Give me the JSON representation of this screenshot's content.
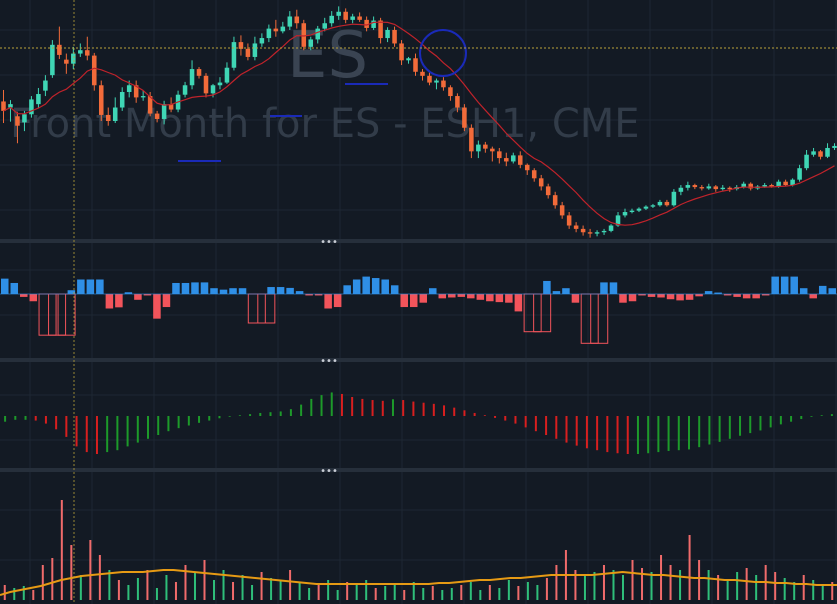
{
  "watermark": {
    "symbol": "ES",
    "description": "Front Month for ES - ESH1, CME"
  },
  "pane_separator_label": "•••",
  "colors": {
    "background": "#131a24",
    "grid": "#1e2733",
    "separator": "#262f3b",
    "up": "#3fd6b5",
    "down": "#f26b3a",
    "ma_line": "#c0232b",
    "crosshair": "#b9a13a",
    "hist_up": "#2f8fe6",
    "hist_down": "#f2545b",
    "osc_up": "#1d9a2a",
    "osc_down": "#d81f1f",
    "vol_up": "#2fbf7a",
    "vol_down": "#f06b6b",
    "vol_ma": "#e69a14",
    "marker": "#1a2ab8"
  },
  "chart_data": [
    {
      "type": "candlestick",
      "pane": "price",
      "symbol": "ES",
      "overlay": "moving-average",
      "candles": [
        [
          0.64,
          0.5,
          0.32,
          0.81
        ],
        [
          0.55,
          0.6,
          0.34,
          0.66
        ],
        [
          0.42,
          0.28,
          0.02,
          0.48
        ],
        [
          0.33,
          0.45,
          0.2,
          0.5
        ],
        [
          0.45,
          0.67,
          0.4,
          0.72
        ],
        [
          0.6,
          0.75,
          0.55,
          0.84
        ],
        [
          0.8,
          0.95,
          0.72,
          1.03
        ],
        [
          1.03,
          1.48,
          0.99,
          1.55
        ],
        [
          1.48,
          1.33,
          1.27,
          1.75
        ],
        [
          1.26,
          1.2,
          1.05,
          1.35
        ],
        [
          1.2,
          1.35,
          1.12,
          1.45
        ],
        [
          1.35,
          1.4,
          1.3,
          1.5
        ],
        [
          1.4,
          1.32,
          1.25,
          1.6
        ],
        [
          1.32,
          0.88,
          0.8,
          1.36
        ],
        [
          0.88,
          0.44,
          0.35,
          0.95
        ],
        [
          0.44,
          0.35,
          0.28,
          0.55
        ],
        [
          0.35,
          0.55,
          0.32,
          0.7
        ],
        [
          0.55,
          0.78,
          0.5,
          0.85
        ],
        [
          0.78,
          0.88,
          0.7,
          0.95
        ],
        [
          0.88,
          0.7,
          0.62,
          0.95
        ],
        [
          0.7,
          0.72,
          0.65,
          0.8
        ],
        [
          0.72,
          0.46,
          0.42,
          0.78
        ],
        [
          0.46,
          0.38,
          0.33,
          0.5
        ],
        [
          0.38,
          0.6,
          0.3,
          0.65
        ],
        [
          0.6,
          0.52,
          0.48,
          0.7
        ],
        [
          0.52,
          0.74,
          0.48,
          0.8
        ],
        [
          0.74,
          0.88,
          0.7,
          0.93
        ],
        [
          0.88,
          1.12,
          0.82,
          1.25
        ],
        [
          1.12,
          1.02,
          0.98,
          1.15
        ],
        [
          1.02,
          0.76,
          0.7,
          1.06
        ],
        [
          0.76,
          0.88,
          0.7,
          0.9
        ],
        [
          0.88,
          0.92,
          0.82,
          1.0
        ],
        [
          0.92,
          1.14,
          0.9,
          1.22
        ],
        [
          1.14,
          1.52,
          1.1,
          1.6
        ],
        [
          1.52,
          1.42,
          1.32,
          1.62
        ],
        [
          1.42,
          1.3,
          1.25,
          1.5
        ],
        [
          1.3,
          1.5,
          1.25,
          1.6
        ],
        [
          1.5,
          1.58,
          1.45,
          1.65
        ],
        [
          1.58,
          1.72,
          1.52,
          1.78
        ],
        [
          1.72,
          1.68,
          1.6,
          1.85
        ],
        [
          1.68,
          1.75,
          1.65,
          1.82
        ],
        [
          1.75,
          1.9,
          1.7,
          1.98
        ],
        [
          1.9,
          1.8,
          1.72,
          2.0
        ],
        [
          1.8,
          1.45,
          1.4,
          1.85
        ],
        [
          1.45,
          1.56,
          1.4,
          1.6
        ],
        [
          1.56,
          1.72,
          1.5,
          1.76
        ],
        [
          1.72,
          1.8,
          1.68,
          1.88
        ],
        [
          1.8,
          1.91,
          1.75,
          1.98
        ],
        [
          1.91,
          1.97,
          1.85,
          2.05
        ],
        [
          1.97,
          1.85,
          1.8,
          2.02
        ],
        [
          1.85,
          1.9,
          1.8,
          1.94
        ],
        [
          1.9,
          1.85,
          1.82,
          1.96
        ],
        [
          1.85,
          1.73,
          1.68,
          1.9
        ],
        [
          1.73,
          1.84,
          1.7,
          1.9
        ],
        [
          1.84,
          1.58,
          1.5,
          1.88
        ],
        [
          1.58,
          1.7,
          1.52,
          1.74
        ],
        [
          1.7,
          1.5,
          1.45,
          1.75
        ],
        [
          1.5,
          1.25,
          1.18,
          1.55
        ],
        [
          1.25,
          1.28,
          1.2,
          1.3
        ],
        [
          1.28,
          1.08,
          1.02,
          1.35
        ],
        [
          1.08,
          1.02,
          0.95,
          1.12
        ],
        [
          1.02,
          0.92,
          0.88,
          1.1
        ],
        [
          0.92,
          0.95,
          0.82,
          0.98
        ],
        [
          0.95,
          0.85,
          0.8,
          1.0
        ],
        [
          0.85,
          0.72,
          0.65,
          0.88
        ],
        [
          0.72,
          0.55,
          0.48,
          0.76
        ],
        [
          0.55,
          0.25,
          0.2,
          0.6
        ],
        [
          0.25,
          -0.1,
          -0.2,
          0.3
        ],
        [
          -0.1,
          0.0,
          -0.2,
          0.06
        ],
        [
          0.0,
          -0.06,
          -0.12,
          0.04
        ],
        [
          -0.06,
          -0.1,
          -0.25,
          -0.03
        ],
        [
          -0.1,
          -0.2,
          -0.28,
          -0.05
        ],
        [
          -0.2,
          -0.25,
          -0.32,
          -0.12
        ],
        [
          -0.25,
          -0.16,
          -0.28,
          -0.12
        ],
        [
          -0.16,
          -0.3,
          -0.35,
          -0.1
        ],
        [
          -0.3,
          -0.38,
          -0.45,
          -0.28
        ],
        [
          -0.38,
          -0.5,
          -0.55,
          -0.35
        ],
        [
          -0.5,
          -0.62,
          -0.68,
          -0.45
        ],
        [
          -0.62,
          -0.75,
          -0.8,
          -0.58
        ],
        [
          -0.75,
          -0.9,
          -0.95,
          -0.7
        ],
        [
          -0.9,
          -1.05,
          -1.1,
          -0.85
        ],
        [
          -1.05,
          -1.2,
          -1.25,
          -1.0
        ],
        [
          -1.2,
          -1.25,
          -1.3,
          -1.15
        ],
        [
          -1.25,
          -1.3,
          -1.35,
          -1.2
        ],
        [
          -1.3,
          -1.32,
          -1.38,
          -1.25
        ],
        [
          -1.32,
          -1.3,
          -1.36,
          -1.27
        ],
        [
          -1.3,
          -1.28,
          -1.34,
          -1.25
        ],
        [
          -1.28,
          -1.2,
          -1.3,
          -1.18
        ],
        [
          -1.2,
          -1.05,
          -1.22,
          -1.0
        ],
        [
          -1.05,
          -1.0,
          -1.08,
          -0.95
        ],
        [
          -1.0,
          -0.98,
          -1.02,
          -0.95
        ],
        [
          -0.98,
          -0.95,
          -1.0,
          -0.93
        ],
        [
          -0.95,
          -0.92,
          -0.97,
          -0.9
        ],
        [
          -0.92,
          -0.9,
          -0.94,
          -0.88
        ],
        [
          -0.9,
          -0.85,
          -0.92,
          -0.82
        ],
        [
          -0.85,
          -0.9,
          -0.92,
          -0.82
        ],
        [
          -0.9,
          -0.7,
          -0.92,
          -0.66
        ],
        [
          -0.7,
          -0.64,
          -0.75,
          -0.6
        ],
        [
          -0.64,
          -0.6,
          -0.68,
          -0.55
        ],
        [
          -0.6,
          -0.63,
          -0.66,
          -0.58
        ],
        [
          -0.63,
          -0.65,
          -0.68,
          -0.6
        ],
        [
          -0.65,
          -0.62,
          -0.67,
          -0.58
        ],
        [
          -0.62,
          -0.66,
          -0.7,
          -0.6
        ],
        [
          -0.66,
          -0.64,
          -0.68,
          -0.6
        ],
        [
          -0.64,
          -0.66,
          -0.7,
          -0.62
        ],
        [
          -0.66,
          -0.63,
          -0.68,
          -0.6
        ],
        [
          -0.63,
          -0.58,
          -0.65,
          -0.55
        ],
        [
          -0.58,
          -0.65,
          -0.68,
          -0.56
        ],
        [
          -0.65,
          -0.62,
          -0.67,
          -0.6
        ],
        [
          -0.62,
          -0.6,
          -0.64,
          -0.57
        ],
        [
          -0.6,
          -0.62,
          -0.64,
          -0.58
        ],
        [
          -0.62,
          -0.55,
          -0.64,
          -0.52
        ],
        [
          -0.55,
          -0.6,
          -0.62,
          -0.52
        ],
        [
          -0.6,
          -0.52,
          -0.62,
          -0.5
        ],
        [
          -0.52,
          -0.35,
          -0.55,
          -0.3
        ],
        [
          -0.35,
          -0.15,
          -0.38,
          -0.08
        ],
        [
          -0.15,
          -0.1,
          -0.18,
          -0.05
        ],
        [
          -0.1,
          -0.18,
          -0.22,
          -0.08
        ],
        [
          -0.18,
          -0.05,
          -0.2,
          0.02
        ],
        [
          -0.05,
          -0.02,
          -0.08,
          0.02
        ]
      ]
    },
    {
      "type": "bar",
      "pane": "histogram",
      "values": [
        0.53,
        0.38,
        -0.1,
        -0.25,
        -1.42,
        -1.42,
        -1.42,
        0.13,
        0.5,
        0.5,
        0.5,
        -0.5,
        -0.46,
        0.06,
        -0.2,
        -0.05,
        -0.85,
        -0.45,
        0.38,
        0.38,
        0.4,
        0.4,
        0.2,
        0.15,
        0.2,
        0.2,
        -1.0,
        -1.0,
        0.24,
        0.24,
        0.21,
        0.1,
        -0.05,
        -0.05,
        -0.5,
        -0.45,
        0.3,
        0.5,
        0.6,
        0.55,
        0.5,
        0.3,
        -0.45,
        -0.45,
        -0.3,
        0.2,
        -0.15,
        -0.12,
        -0.1,
        -0.15,
        -0.2,
        -0.25,
        -0.28,
        -0.3,
        -0.6,
        -1.3,
        -1.3,
        0.45,
        0.1,
        0.2,
        -0.3,
        -1.7,
        -1.7,
        0.4,
        0.4,
        -0.3,
        -0.25,
        -0.05,
        -0.1,
        -0.12,
        -0.18,
        -0.22,
        -0.2,
        -0.08,
        0.1,
        0.05,
        -0.05,
        -0.1,
        -0.15,
        -0.15,
        -0.05,
        0.6,
        0.6,
        0.6,
        0.2,
        -0.15,
        0.28,
        0.2
      ]
    },
    {
      "type": "bar",
      "pane": "oscillator",
      "values": [
        -0.15,
        -0.1,
        -0.1,
        -0.12,
        -0.2,
        -0.35,
        -0.55,
        -0.8,
        -0.95,
        -1.0,
        -0.95,
        -0.9,
        -0.8,
        -0.7,
        -0.6,
        -0.5,
        -0.4,
        -0.32,
        -0.25,
        -0.18,
        -0.12,
        -0.06,
        -0.02,
        0.02,
        0.05,
        0.08,
        0.1,
        0.12,
        0.18,
        0.3,
        0.45,
        0.55,
        0.62,
        0.58,
        0.5,
        0.45,
        0.42,
        0.4,
        0.44,
        0.42,
        0.38,
        0.35,
        0.32,
        0.28,
        0.22,
        0.15,
        0.08,
        0.02,
        -0.05,
        -0.12,
        -0.2,
        -0.3,
        -0.4,
        -0.5,
        -0.6,
        -0.7,
        -0.78,
        -0.85,
        -0.9,
        -0.95,
        -0.98,
        -1.0,
        -1.0,
        -0.98,
        -0.95,
        -0.92,
        -0.9,
        -0.88,
        -0.82,
        -0.75,
        -0.68,
        -0.6,
        -0.52,
        -0.45,
        -0.38,
        -0.3,
        -0.22,
        -0.15,
        -0.08,
        -0.02,
        0.02,
        0.05
      ]
    },
    {
      "type": "bar",
      "pane": "volume",
      "overlay": "moving-average",
      "values": [
        0.15,
        0.12,
        0.14,
        0.1,
        0.35,
        0.42,
        1.0,
        0.55,
        0.25,
        0.6,
        0.45,
        0.3,
        0.2,
        0.15,
        0.22,
        0.3,
        0.12,
        0.25,
        0.18,
        0.35,
        0.28,
        0.4,
        0.2,
        0.3,
        0.18,
        0.25,
        0.15,
        0.28,
        0.22,
        0.2,
        0.3,
        0.18,
        0.12,
        0.15,
        0.2,
        0.1,
        0.18,
        0.15,
        0.2,
        0.12,
        0.14,
        0.15,
        0.1,
        0.18,
        0.12,
        0.14,
        0.1,
        0.12,
        0.15,
        0.18,
        0.1,
        0.15,
        0.12,
        0.2,
        0.14,
        0.18,
        0.15,
        0.22,
        0.35,
        0.5,
        0.3,
        0.25,
        0.28,
        0.35,
        0.3,
        0.25,
        0.4,
        0.32,
        0.28,
        0.45,
        0.35,
        0.3,
        0.65,
        0.4,
        0.3,
        0.25,
        0.2,
        0.28,
        0.32,
        0.25,
        0.35,
        0.28,
        0.22,
        0.18,
        0.25,
        0.2,
        0.15,
        0.18
      ],
      "ma": [
        0.05,
        0.08,
        0.1,
        0.12,
        0.14,
        0.17,
        0.2,
        0.22,
        0.24,
        0.25,
        0.26,
        0.27,
        0.28,
        0.28,
        0.28,
        0.29,
        0.3,
        0.3,
        0.29,
        0.28,
        0.27,
        0.26,
        0.25,
        0.24,
        0.23,
        0.22,
        0.21,
        0.2,
        0.19,
        0.18,
        0.17,
        0.16,
        0.16,
        0.16,
        0.16,
        0.16,
        0.16,
        0.16,
        0.16,
        0.16,
        0.16,
        0.16,
        0.16,
        0.17,
        0.17,
        0.18,
        0.19,
        0.2,
        0.2,
        0.21,
        0.22,
        0.22,
        0.23,
        0.24,
        0.25,
        0.25,
        0.25,
        0.25,
        0.25,
        0.26,
        0.27,
        0.28,
        0.27,
        0.26,
        0.25,
        0.25,
        0.24,
        0.23,
        0.22,
        0.22,
        0.21,
        0.2,
        0.2,
        0.19,
        0.18,
        0.18,
        0.17,
        0.17,
        0.16,
        0.16,
        0.15,
        0.15,
        0.15
      ]
    }
  ]
}
